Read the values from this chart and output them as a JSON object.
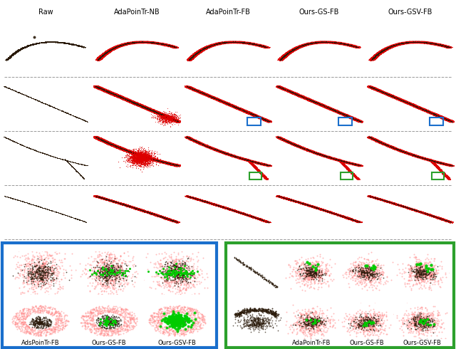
{
  "col_labels": [
    "Raw",
    "AdaPoinTr-NB",
    "AdaPoinTr-FB",
    "Ours-GS-FB",
    "Ours-GSV-FB"
  ],
  "bottom_blue_labels": [
    "AdsPoinTr-FB",
    "Ours-GS-FB",
    "Ours-GSV-FB"
  ],
  "bottom_green_labels": [
    "AdaPoinTr-FB",
    "Ours-GS-FB",
    "Ours-GSV-FB"
  ],
  "fig_width": 6.4,
  "fig_height": 4.9,
  "dpi": 100,
  "bg_color": "#ffffff",
  "blue_box_color": "#1a6fcc",
  "green_box_color": "#2ca02c",
  "red_point_color": "#dd0000",
  "dark_point_color": "#2a1a0a",
  "green_point_color": "#00cc00",
  "pink_point_color": "#ff8888",
  "row_divider_color": "#999999"
}
